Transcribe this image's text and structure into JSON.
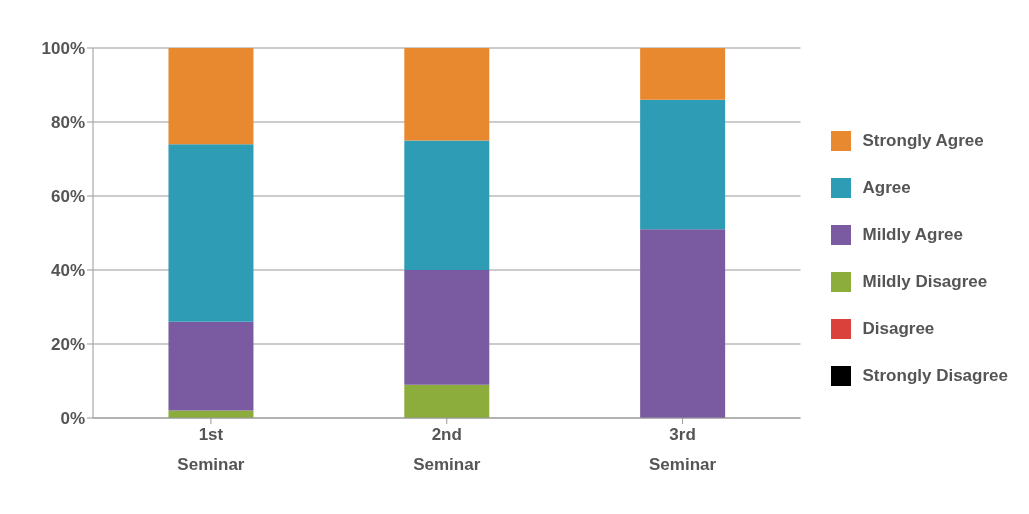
{
  "chart_data": {
    "type": "bar",
    "stacked": true,
    "categories": [
      "1st Seminar",
      "2nd Seminar",
      "3rd Seminar"
    ],
    "series": [
      {
        "name": "Strongly Disagree",
        "color": "#000000",
        "values": [
          0,
          0,
          0
        ]
      },
      {
        "name": "Disagree",
        "color": "#d9413a",
        "values": [
          0,
          0,
          0
        ]
      },
      {
        "name": "Mildly Disagree",
        "color": "#8cad3c",
        "values": [
          2,
          9,
          0
        ]
      },
      {
        "name": "Mildly Agree",
        "color": "#7a5aa0",
        "values": [
          24,
          31,
          51
        ]
      },
      {
        "name": "Agree",
        "color": "#2e9cb5",
        "values": [
          48,
          35,
          35
        ]
      },
      {
        "name": "Strongly Agree",
        "color": "#e8892f",
        "values": [
          26,
          25,
          14
        ]
      }
    ],
    "ylim": [
      0,
      100
    ],
    "yticks": [
      {
        "value": 0,
        "label": "0%"
      },
      {
        "value": 20,
        "label": "20%"
      },
      {
        "value": 40,
        "label": "40%"
      },
      {
        "value": 60,
        "label": "60%"
      },
      {
        "value": 80,
        "label": "80%"
      },
      {
        "value": 100,
        "label": "100%"
      }
    ],
    "grid": "y",
    "legend": "right"
  }
}
